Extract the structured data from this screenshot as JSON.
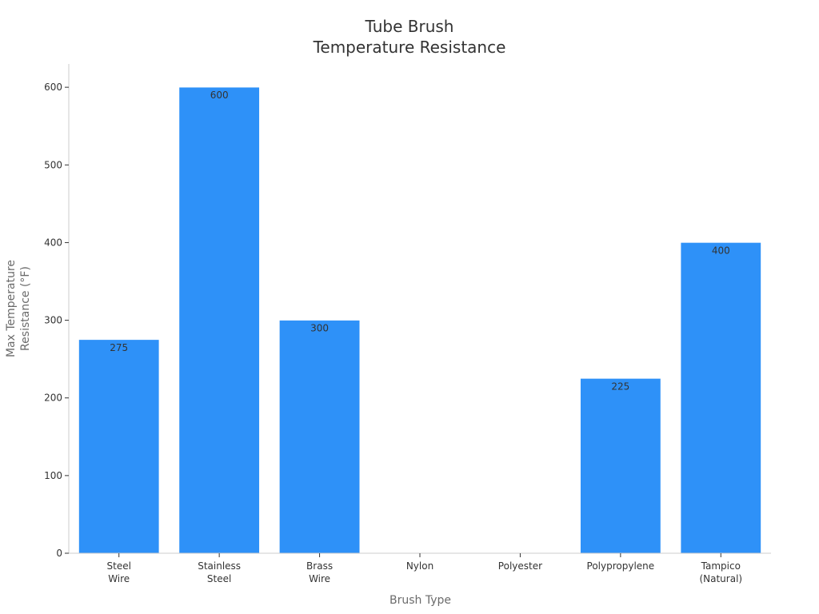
{
  "chart_data": {
    "type": "bar",
    "title": [
      "Tube Brush",
      "Temperature Resistance"
    ],
    "xlabel": "Brush Type",
    "ylabel": [
      "Max Temperature",
      "Resistance (°F)"
    ],
    "categories": [
      [
        "Steel",
        "Wire"
      ],
      [
        "Stainless",
        "Steel"
      ],
      [
        "Brass",
        "Wire"
      ],
      [
        "Nylon"
      ],
      [
        "Polyester"
      ],
      [
        "Polypropylene"
      ],
      [
        "Tampico",
        "(Natural)"
      ]
    ],
    "values": [
      275,
      600,
      300,
      null,
      null,
      225,
      400
    ],
    "data_labels": [
      "275",
      "600",
      "300",
      "",
      "",
      "225",
      "400"
    ],
    "ylim": [
      0,
      630
    ],
    "yticks": [
      0,
      100,
      200,
      300,
      400,
      500,
      600
    ],
    "bar_color": "#2e91f8",
    "grid": false,
    "legend": "none"
  }
}
